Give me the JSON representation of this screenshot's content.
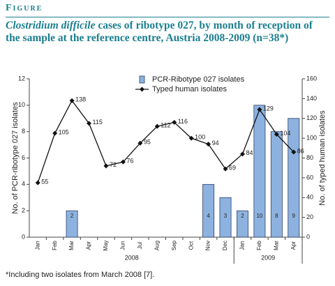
{
  "header": "Figure",
  "chart_data": {
    "type": "bar_line",
    "title_species": "Clostridium difficile",
    "title": "cases of ribotype 027, by month of reception of the sample at the reference centre, Austria 2008-2009 (n=38*)",
    "categories": [
      "Jan",
      "Feb",
      "Mar",
      "Apr",
      "May",
      "Jun",
      "Jul",
      "Aug",
      "Sep",
      "Oct",
      "Nov",
      "Dec",
      "Jan",
      "Feb",
      "Mar",
      "Apr"
    ],
    "groups": [
      {
        "label": "2008",
        "start": 0,
        "end": 11
      },
      {
        "label": "2009",
        "start": 12,
        "end": 15
      }
    ],
    "series": [
      {
        "name": "PCR-Ribotype 027 isolates",
        "kind": "bar",
        "color": "#8db2df",
        "axis": "y",
        "values": [
          null,
          null,
          2,
          null,
          null,
          null,
          null,
          null,
          null,
          null,
          4,
          3,
          2,
          10,
          8,
          9
        ]
      },
      {
        "name": "Typed human isolates",
        "kind": "line",
        "color": "#111111",
        "axis": "y2",
        "values": [
          55,
          105,
          138,
          115,
          72,
          76,
          95,
          112,
          116,
          100,
          94,
          69,
          84,
          129,
          104,
          86
        ]
      }
    ],
    "ylabel": "No. of PCR-ribotype 027 isolates",
    "y2label": "No. of typed human isolates",
    "ylim": [
      0,
      12
    ],
    "yticks": [
      0,
      2,
      4,
      6,
      8,
      10,
      12
    ],
    "y2lim": [
      0,
      160
    ],
    "y2ticks": [
      0,
      20,
      40,
      60,
      80,
      100,
      120,
      140,
      160
    ],
    "legend": "top"
  },
  "footnote": "*Including two isolates from March 2008 [7]."
}
